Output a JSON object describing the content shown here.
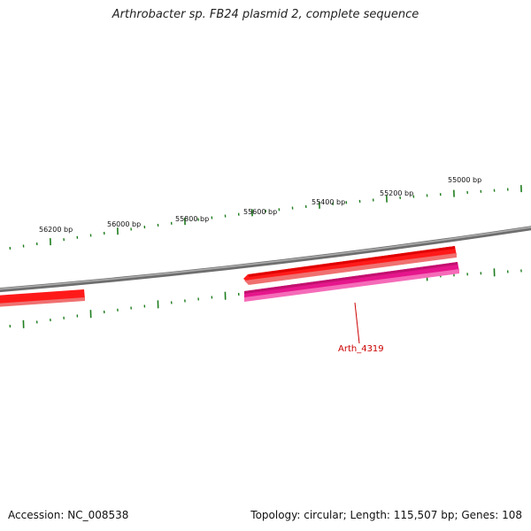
{
  "title": "Arthrobacter sp. FB24 plasmid 2, complete sequence",
  "footer": {
    "accession": "Accession: NC_008538",
    "stats": "Topology: circular; Length: 115,507 bp; Genes: 108"
  },
  "scale": {
    "outer_labels": [
      "56200 bp",
      "56000 bp",
      "55800 bp",
      "55600 bp",
      "55400 bp",
      "55200 bp",
      "55000 bp"
    ]
  },
  "features": {
    "gene_label": "Arth_4319"
  },
  "colors": {
    "backbone": "#808080",
    "tick": "#1e7d1e",
    "gene_forward": "#ff0000",
    "gene_reverse": "#e6168c",
    "label": "#cc0000"
  }
}
